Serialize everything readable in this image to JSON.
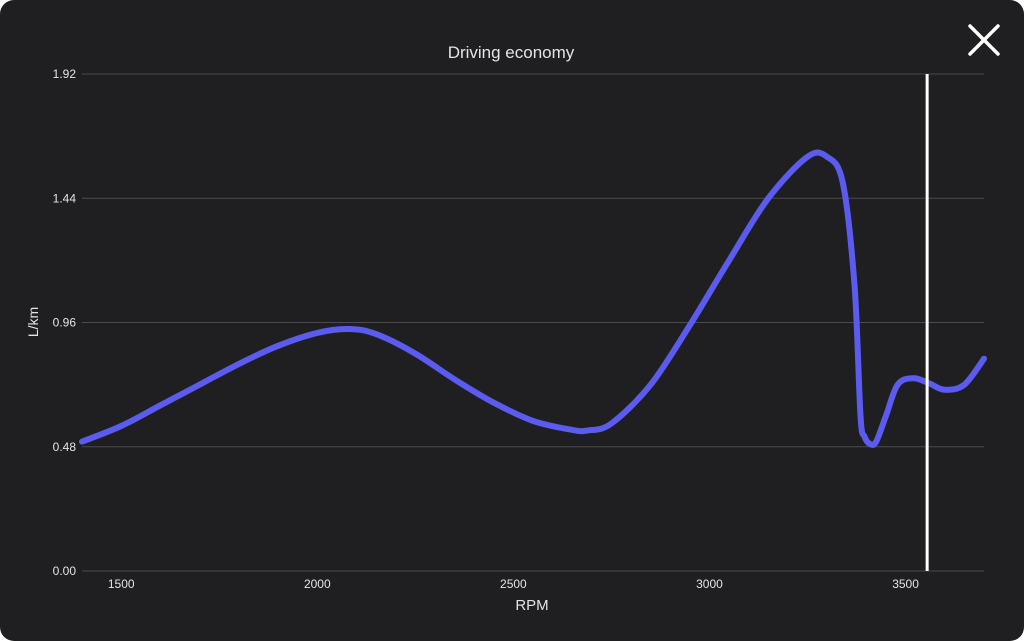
{
  "window": {
    "close_icon": "close-icon"
  },
  "colors": {
    "background": "#1f1f22",
    "grid": "#4a4a4f",
    "axis_text": "#e4e4e4",
    "series": "#5b5bef",
    "marker": "#ffffff"
  },
  "chart_data": {
    "type": "line",
    "title": "Driving economy",
    "xlabel": "RPM",
    "ylabel": "L/km",
    "xlim": [
      1400,
      3700
    ],
    "ylim": [
      0,
      1.92
    ],
    "x_ticks": [
      1500,
      2000,
      2500,
      3000,
      3500
    ],
    "y_ticks": [
      "0.00",
      "0.48",
      "0.96",
      "1.44",
      "1.92"
    ],
    "grid": "horizontal",
    "legend": "none",
    "marker_line_x": 3555,
    "series": [
      {
        "x": [
          1400,
          1500,
          1600,
          1700,
          1800,
          1900,
          2000,
          2080,
          2150,
          2250,
          2350,
          2450,
          2550,
          2650,
          2690,
          2750,
          2850,
          2950,
          3050,
          3150,
          3250,
          3300,
          3340,
          3370,
          3385,
          3395,
          3410,
          3425,
          3450,
          3480,
          3520,
          3560,
          3600,
          3650,
          3700
        ],
        "values": [
          0.5,
          0.56,
          0.64,
          0.72,
          0.8,
          0.87,
          0.92,
          0.935,
          0.915,
          0.84,
          0.74,
          0.65,
          0.58,
          0.545,
          0.543,
          0.57,
          0.72,
          0.95,
          1.2,
          1.44,
          1.6,
          1.6,
          1.5,
          1.1,
          0.6,
          0.52,
          0.49,
          0.5,
          0.6,
          0.72,
          0.745,
          0.725,
          0.7,
          0.72,
          0.82
        ]
      }
    ]
  }
}
